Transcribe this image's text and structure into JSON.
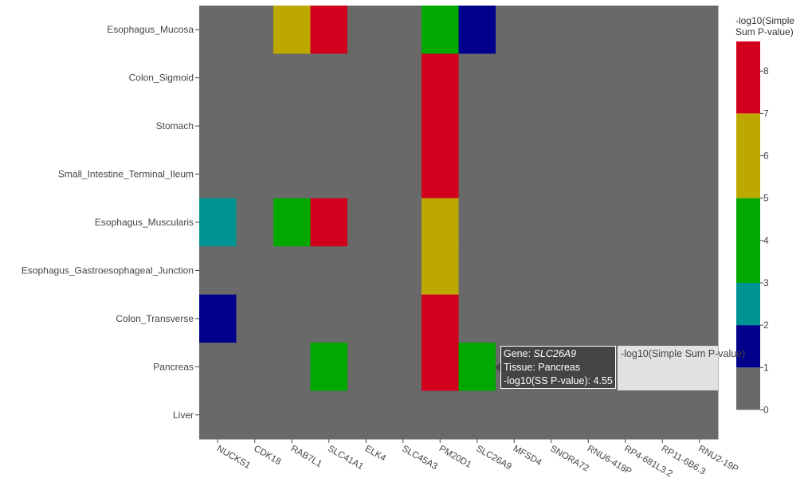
{
  "chart_data": {
    "type": "heatmap",
    "genes": [
      "NUCKS1",
      "CDK18",
      "RAB7L1",
      "SLC41A1",
      "ELK4",
      "SLC45A3",
      "PM20D1",
      "SLC26A9",
      "MFSD4",
      "SNORA72",
      "RNU6-418P",
      "RP4-681L3.2",
      "RP11-6B6.3",
      "RNU2-19P"
    ],
    "tissues": [
      "Esophagus_Mucosa",
      "Colon_Sigmoid",
      "Stomach",
      "Small_Intestine_Terminal_Ileum",
      "Esophagus_Muscularis",
      "Esophagus_Gastroesophageal_Junction",
      "Colon_Transverse",
      "Pancreas",
      "Liver"
    ],
    "z": [
      [
        0,
        0,
        6.5,
        7.5,
        0,
        0,
        4.5,
        1.5,
        0,
        0,
        0,
        0,
        0,
        0
      ],
      [
        0,
        0,
        0,
        0,
        0,
        0,
        7.5,
        0,
        0,
        0,
        0,
        0,
        0,
        0
      ],
      [
        0,
        0,
        0,
        0,
        0,
        0,
        7.5,
        0,
        0,
        0,
        0,
        0,
        0,
        0
      ],
      [
        0,
        0,
        0,
        0,
        0,
        0,
        7.5,
        0,
        0,
        0,
        0,
        0,
        0,
        0
      ],
      [
        2.5,
        0,
        4.5,
        7.5,
        0,
        0,
        6.5,
        0,
        0,
        0,
        0,
        0,
        0,
        0
      ],
      [
        0,
        0,
        0,
        0,
        0,
        0,
        6.5,
        0,
        0,
        0,
        0,
        0,
        0,
        0
      ],
      [
        1.5,
        0,
        0,
        0,
        0,
        0,
        7.5,
        0,
        0,
        0,
        0,
        0,
        0,
        0
      ],
      [
        0,
        0,
        0,
        4.5,
        0,
        0,
        7.5,
        4.55,
        0,
        0,
        0,
        0,
        0,
        0
      ],
      [
        0,
        0,
        0,
        0,
        0,
        0,
        0,
        0,
        0,
        0,
        0,
        0,
        0,
        0
      ]
    ],
    "zrange": [
      -0.5,
      8.7
    ],
    "colorscale": [
      {
        "min": 0,
        "max": 1,
        "color": "#696969"
      },
      {
        "min": 1,
        "max": 2,
        "color": "#00008b"
      },
      {
        "min": 2,
        "max": 3,
        "color": "#009393"
      },
      {
        "min": 3,
        "max": 5,
        "color": "#00a800"
      },
      {
        "min": 5,
        "max": 7,
        "color": "#bda800"
      },
      {
        "min": 7,
        "max": 100,
        "color": "#d1001c"
      }
    ],
    "colorbar": {
      "title_line1": "-log10(Simple",
      "title_line2": "Sum P-value)",
      "ticks": [
        0,
        1,
        2,
        3,
        4,
        5,
        6,
        7,
        8
      ]
    }
  },
  "tooltip": {
    "gene_label": "Gene:",
    "gene_value": "SLC26A9",
    "tissue_line": "Tissue: Pancreas",
    "value_line": "-log10(SS P-value): 4.55",
    "trace_name": "-log10(Simple Sum P-value)"
  }
}
